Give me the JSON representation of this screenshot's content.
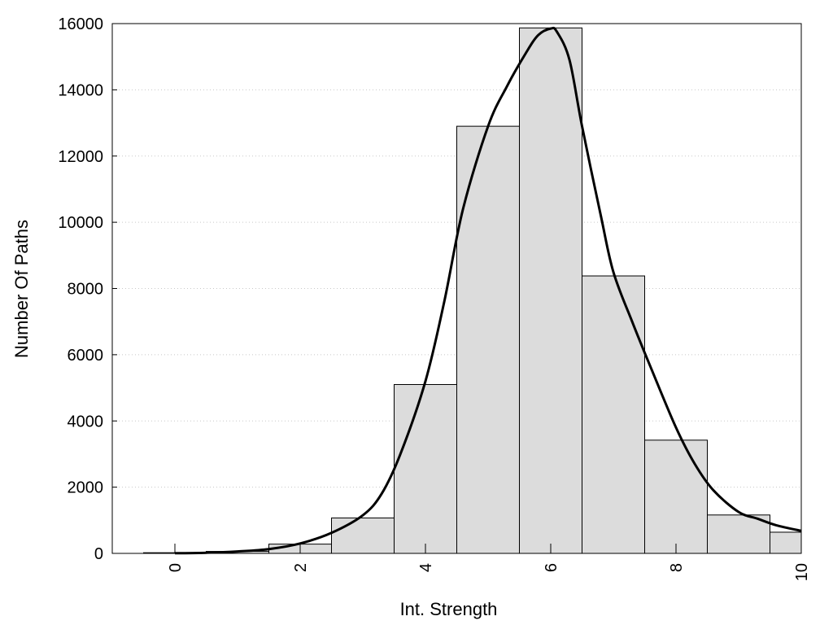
{
  "chart_data": {
    "type": "bar",
    "title": "",
    "xlabel": "Int. Strength",
    "ylabel": "Number Of Paths",
    "xlim": [
      -1,
      10
    ],
    "ylim": [
      0,
      16000
    ],
    "x_ticks": [
      "0",
      "2",
      "4",
      "6",
      "8",
      "10"
    ],
    "y_ticks": [
      "0",
      "2000",
      "4000",
      "6000",
      "8000",
      "10000",
      "12000",
      "14000",
      "16000"
    ],
    "grid": "horizontal dotted",
    "colors": {
      "bar_fill": "#dcdcdc",
      "bar_edge": "#000000",
      "curve": "#000000"
    },
    "series": [
      {
        "type": "histogram",
        "bin_centers": [
          0,
          1,
          2,
          3,
          4,
          5,
          6,
          7,
          8,
          9,
          10
        ],
        "bin_width": 1,
        "values": [
          20,
          60,
          280,
          1070,
          5100,
          12900,
          15870,
          8380,
          3420,
          1160,
          640
        ]
      },
      {
        "type": "line",
        "x": [
          0,
          0.5,
          1,
          1.5,
          2,
          2.5,
          3,
          3.3,
          3.6,
          4,
          4.3,
          4.6,
          5,
          5.3,
          5.6,
          5.8,
          6,
          6.1,
          6.3,
          6.5,
          6.8,
          7,
          7.3,
          7.6,
          8,
          8.3,
          8.6,
          9,
          9.3,
          9.6,
          10
        ],
        "y": [
          5,
          20,
          60,
          130,
          300,
          620,
          1150,
          1800,
          3000,
          5200,
          7600,
          10400,
          12900,
          14100,
          15100,
          15650,
          15850,
          15750,
          14900,
          12900,
          10200,
          8500,
          7000,
          5600,
          3800,
          2700,
          1900,
          1250,
          1050,
          850,
          680
        ]
      }
    ]
  }
}
